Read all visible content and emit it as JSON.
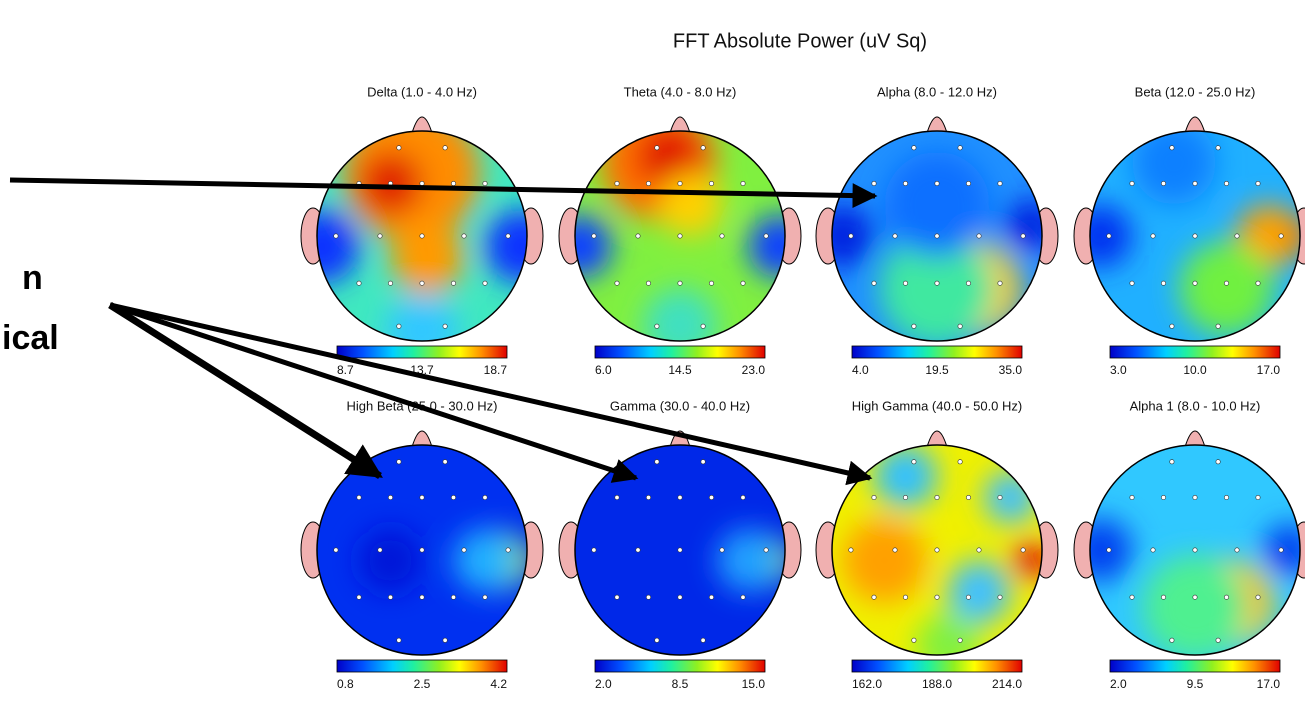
{
  "title": "FFT Absolute Power  (uV Sq)",
  "side_text": [
    "n",
    "ical"
  ],
  "maps": [
    {
      "label": "Delta (1.0 - 4.0 Hz)",
      "scale": [
        "8.7",
        "13.7",
        "18.7"
      ]
    },
    {
      "label": "Theta (4.0 - 8.0 Hz)",
      "scale": [
        "6.0",
        "14.5",
        "23.0"
      ]
    },
    {
      "label": "Alpha (8.0 - 12.0 Hz)",
      "scale": [
        "4.0",
        "19.5",
        "35.0"
      ]
    },
    {
      "label": "Beta (12.0 - 25.0 Hz)",
      "scale": [
        "3.0",
        "10.0",
        "17.0"
      ]
    },
    {
      "label": "High Beta (25.0 - 30.0 Hz)",
      "scale": [
        "0.8",
        "2.5",
        "4.2"
      ]
    },
    {
      "label": "Gamma (30.0 - 40.0 Hz)",
      "scale": [
        "2.0",
        "8.5",
        "15.0"
      ]
    },
    {
      "label": "High Gamma (40.0 - 50.0 Hz)",
      "scale": [
        "162.0",
        "188.0",
        "214.0"
      ]
    },
    {
      "label": "Alpha 1 (8.0 - 10.0 Hz)",
      "scale": [
        "2.0",
        "9.5",
        "17.0"
      ]
    }
  ]
}
